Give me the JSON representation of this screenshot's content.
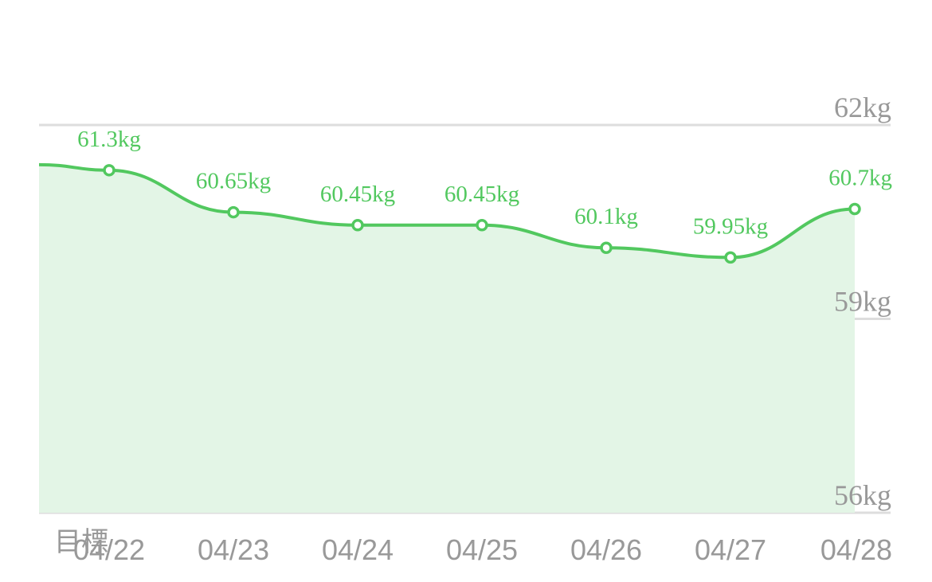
{
  "chart_data": {
    "type": "area",
    "categories": [
      "04/22",
      "04/23",
      "04/24",
      "04/25",
      "04/26",
      "04/27",
      "04/28"
    ],
    "values": [
      61.3,
      60.65,
      60.45,
      60.45,
      60.1,
      59.95,
      60.7
    ],
    "data_labels": [
      "61.3kg",
      "60.65kg",
      "60.45kg",
      "60.45kg",
      "60.1kg",
      "59.95kg",
      "60.7kg"
    ],
    "ylim": [
      56,
      62
    ],
    "y_ticks": [
      {
        "value": 62,
        "label": "62kg"
      },
      {
        "value": 59,
        "label": "59kg"
      },
      {
        "value": 56,
        "label": "56kg"
      }
    ],
    "target_label": "目標",
    "grid": true,
    "colors": {
      "line": "#52c85f",
      "fill": "#e3f5e6",
      "grid": "#dddddd",
      "tick_text": "#999999"
    }
  }
}
